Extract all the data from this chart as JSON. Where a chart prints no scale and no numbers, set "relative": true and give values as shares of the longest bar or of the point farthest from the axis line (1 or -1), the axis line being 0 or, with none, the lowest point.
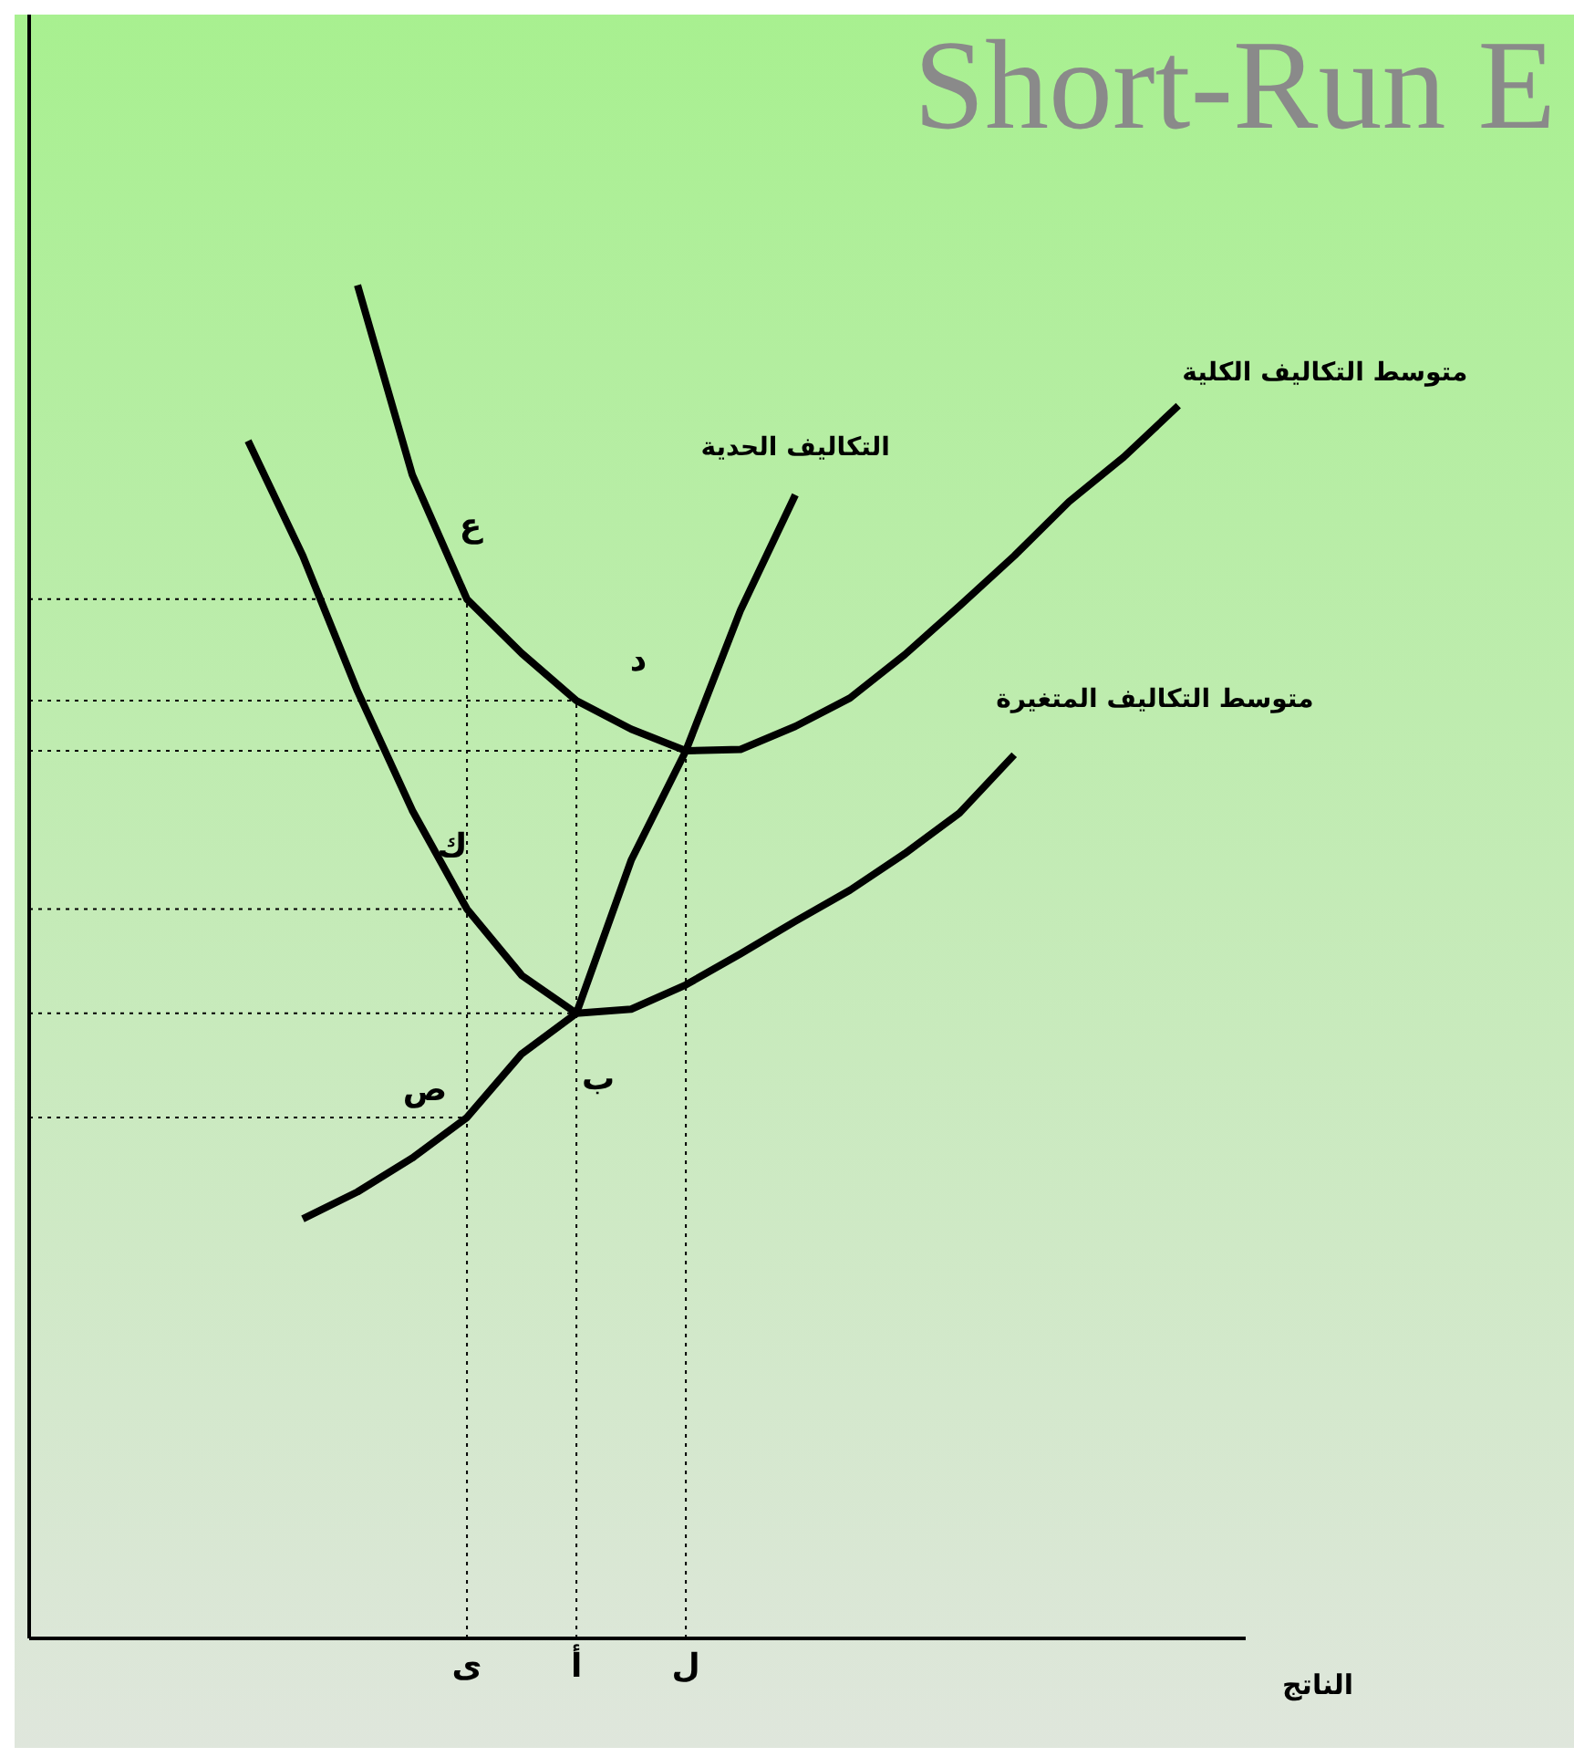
{
  "chart_data": {
    "type": "line",
    "title": "Short-Run E",
    "xlabel": "الناتج",
    "relative": true,
    "marker": "none",
    "categories": [
      null,
      null,
      null,
      null,
      null,
      null,
      null,
      null,
      "ى",
      null,
      "أ",
      null,
      "ل",
      null,
      null,
      null,
      null,
      null,
      null,
      null,
      null,
      null
    ],
    "series": [
      {
        "name": "متوسط التكاليف الكلية",
        "color": "#000000",
        "values": [
          null,
          null,
          null,
          null,
          null,
          null,
          1.0,
          0.86,
          0.768,
          0.728,
          0.693,
          0.672,
          0.656,
          0.657,
          0.674,
          0.695,
          0.727,
          0.763,
          0.8,
          0.84,
          0.873,
          0.911
        ]
      },
      {
        "name": "التكاليف الحدية",
        "color": "#000000",
        "values": [
          null,
          null,
          null,
          null,
          null,
          0.31,
          0.33,
          0.355,
          0.385,
          0.432,
          0.462,
          0.575,
          0.656,
          0.76,
          0.845,
          null,
          null,
          null,
          null,
          null,
          null,
          null
        ]
      },
      {
        "name": "متوسط التكاليف المتغيرة",
        "color": "#000000",
        "values": [
          null,
          null,
          null,
          null,
          0.885,
          0.8,
          0.7,
          0.612,
          0.539,
          0.49,
          0.462,
          0.465,
          0.483,
          0.506,
          0.53,
          0.553,
          0.58,
          0.61,
          0.653,
          null,
          null,
          null
        ]
      },
      {
        "color": "#000000",
        "line_style": "dotted",
        "values": [
          0.768,
          0.768,
          0.768,
          0.768,
          0.768,
          0.768,
          0.768,
          0.768,
          0.768,
          null,
          null,
          null,
          null,
          null,
          null,
          null,
          null,
          null,
          null,
          null,
          null,
          null
        ]
      },
      {
        "color": "#000000",
        "line_style": "dotted",
        "values": [
          0.539,
          0.539,
          0.539,
          0.539,
          0.539,
          0.539,
          0.539,
          0.539,
          0.539,
          null,
          null,
          null,
          null,
          null,
          null,
          null,
          null,
          null,
          null,
          null,
          null,
          null
        ]
      },
      {
        "color": "#000000",
        "line_style": "dotted",
        "values": [
          0.385,
          0.385,
          0.385,
          0.385,
          0.385,
          0.385,
          0.385,
          0.385,
          0.385,
          null,
          null,
          null,
          null,
          null,
          null,
          null,
          null,
          null,
          null,
          null,
          null,
          null
        ]
      },
      {
        "color": "#000000",
        "line_style": "dotted",
        "values": [
          0.693,
          0.693,
          0.693,
          0.693,
          0.693,
          0.693,
          0.693,
          0.693,
          0.693,
          0.693,
          0.693,
          null,
          null,
          null,
          null,
          null,
          null,
          null,
          null,
          null,
          null,
          null
        ]
      },
      {
        "color": "#000000",
        "line_style": "dotted",
        "values": [
          0.462,
          0.462,
          0.462,
          0.462,
          0.462,
          0.462,
          0.462,
          0.462,
          0.462,
          0.462,
          0.462,
          null,
          null,
          null,
          null,
          null,
          null,
          null,
          null,
          null,
          null,
          null
        ]
      },
      {
        "color": "#000000",
        "line_style": "dotted",
        "values": [
          0.656,
          0.656,
          0.656,
          0.656,
          0.656,
          0.656,
          0.656,
          0.656,
          0.656,
          0.656,
          0.656,
          0.656,
          0.656,
          null,
          null,
          null,
          null,
          null,
          null,
          null,
          null,
          null
        ]
      }
    ],
    "annotations": [
      {
        "text": "ع",
        "x": "ى",
        "y": 0.768
      },
      {
        "text": "د",
        "x": "أ",
        "y": 0.693
      },
      {
        "text": "ك",
        "x": "ى",
        "y": 0.539
      },
      {
        "text": "ب",
        "x": "أ",
        "y": 0.462
      },
      {
        "text": "ص",
        "x": "ى",
        "y": 0.385
      }
    ]
  }
}
